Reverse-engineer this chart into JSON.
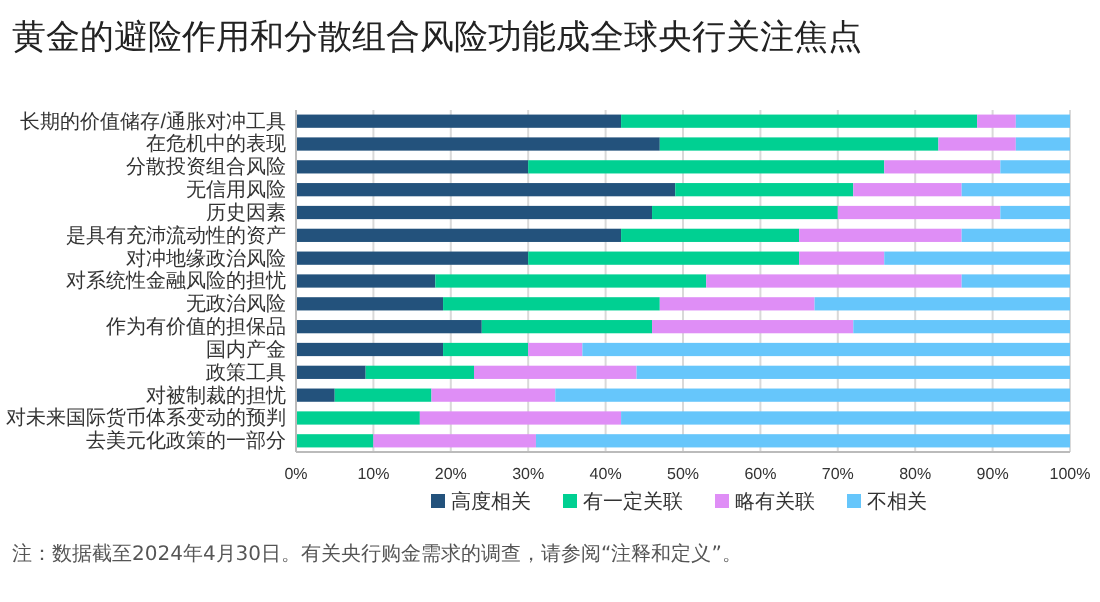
{
  "chart_data": {
    "type": "bar",
    "orientation": "horizontal",
    "stacked": true,
    "title": "黄金的避险作用和分散组合风险功能成全球央行关注焦点",
    "categories": [
      "长期的价值储存/通胀对冲工具",
      "在危机中的表现",
      "分散投资组合风险",
      "无信用风险",
      "历史因素",
      "是具有充沛流动性的资产",
      "对冲地缘政治风险",
      "对系统性金融风险的担忧",
      "无政治风险",
      "作为有价值的担保品",
      "国内产金",
      "政策工具",
      "对被制裁的担忧",
      "对未来国际货币体系变动的预判",
      "去美元化政策的一部分"
    ],
    "series": [
      {
        "name": "高度相关",
        "color": "#23527c",
        "values": [
          42,
          47,
          30,
          49,
          46,
          42,
          30,
          18,
          19,
          24,
          19,
          9,
          5,
          0,
          0
        ]
      },
      {
        "name": "有一定关联",
        "color": "#00d092",
        "values": [
          46,
          36,
          46,
          23,
          24,
          23,
          35,
          35,
          28,
          22,
          11,
          14,
          12.5,
          16,
          10
        ]
      },
      {
        "name": "略有关联",
        "color": "#df8ef6",
        "values": [
          5,
          10,
          15,
          14,
          21,
          21,
          11,
          33,
          20,
          26,
          7,
          21,
          16,
          26,
          21
        ]
      },
      {
        "name": "不相关",
        "color": "#66c6fb",
        "values": [
          7,
          7,
          9,
          14,
          9,
          14,
          24,
          14,
          33,
          28,
          63,
          56,
          66.5,
          58,
          69
        ]
      }
    ],
    "xlim": [
      0,
      100
    ],
    "xticks": [
      {
        "value": 0,
        "label": "0%"
      },
      {
        "value": 10,
        "label": "10%"
      },
      {
        "value": 20,
        "label": "20%"
      },
      {
        "value": 30,
        "label": "30%"
      },
      {
        "value": 40,
        "label": "40%"
      },
      {
        "value": 50,
        "label": "50%"
      },
      {
        "value": 60,
        "label": "60%"
      },
      {
        "value": 70,
        "label": "70%"
      },
      {
        "value": 80,
        "label": "80%"
      },
      {
        "value": 90,
        "label": "90%"
      },
      {
        "value": 100,
        "label": "100%"
      }
    ],
    "grid": "x",
    "legend": "bottom",
    "annotations": [
      "注：数据截至2024年4月30日。有关央行购金需求的调查，请参阅“注释和定义”。"
    ]
  }
}
